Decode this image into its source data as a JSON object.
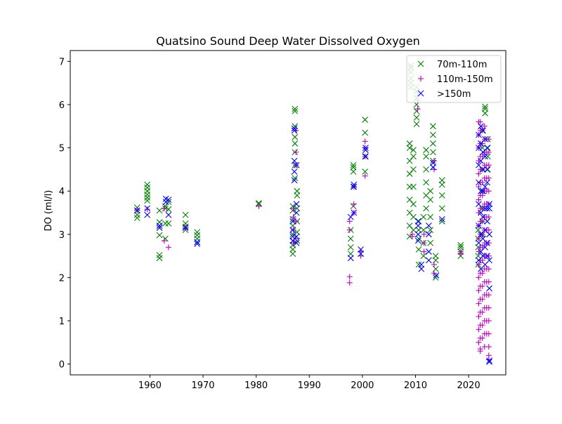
{
  "chart_data": {
    "type": "scatter",
    "title": "Quatsino Sound Deep Water Dissolved Oxygen",
    "xlabel": "",
    "ylabel": "DO (ml/l)",
    "xlim": [
      1945,
      2027
    ],
    "ylim": [
      -0.25,
      7.25
    ],
    "xticks": [
      1960,
      1970,
      1980,
      1990,
      2000,
      2010,
      2020
    ],
    "yticks": [
      0,
      1,
      2,
      3,
      4,
      5,
      6,
      7
    ],
    "grid": false,
    "legend_position": "top-right",
    "series": [
      {
        "name": "70m-110m",
        "marker": "x",
        "color": "#008000",
        "clusters": [
          [
            1957.6,
            [
              3.38,
              3.45,
              3.55,
              3.62
            ]
          ],
          [
            1959.5,
            [
              3.78,
              3.85,
              3.92,
              4.0,
              4.08,
              4.15
            ]
          ],
          [
            1961.8,
            [
              2.45,
              2.52,
              2.98,
              3.2,
              3.28,
              3.55
            ]
          ],
          [
            1962.9,
            [
              2.9,
              3.25,
              3.6,
              3.65
            ]
          ],
          [
            1963.5,
            [
              3.25,
              3.58,
              3.75
            ]
          ],
          [
            1966.7,
            [
              3.1,
              3.18,
              3.25,
              3.45
            ]
          ],
          [
            1968.9,
            [
              2.82,
              2.9,
              2.98,
              3.05
            ]
          ],
          [
            1980.5,
            [
              3.7,
              3.72
            ]
          ],
          [
            1986.9,
            [
              2.55,
              2.65,
              2.75,
              2.85,
              3.0,
              3.2,
              3.35,
              3.55,
              3.65
            ]
          ],
          [
            1987.3,
            [
              4.3,
              4.6,
              4.9,
              5.1,
              5.25,
              5.5,
              5.85,
              5.9
            ]
          ],
          [
            1987.7,
            [
              2.85,
              3.05,
              3.3,
              3.6,
              3.9,
              4.0
            ]
          ],
          [
            1997.8,
            [
              2.55,
              2.7,
              2.9,
              3.1
            ]
          ],
          [
            1998.3,
            [
              3.65,
              4.1,
              4.45,
              4.55,
              4.6
            ]
          ],
          [
            2000.5,
            [
              4.45,
              4.8,
              5.35,
              5.65
            ]
          ],
          [
            2008.9,
            [
              2.95,
              3.2,
              3.5,
              3.8,
              4.1,
              4.4,
              4.7,
              5.0,
              5.1
            ]
          ],
          [
            2009.1,
            [
              6.4,
              6.5,
              6.6,
              6.75,
              6.85,
              6.9
            ]
          ],
          [
            2009.6,
            [
              3.1,
              3.4,
              3.7,
              4.1,
              4.5,
              4.8,
              4.95
            ]
          ],
          [
            2010.2,
            [
              5.55,
              5.7,
              5.85,
              6.0,
              6.15,
              6.3,
              6.4
            ]
          ],
          [
            2010.6,
            [
              2.3,
              2.65,
              2.9,
              3.1,
              3.3
            ]
          ],
          [
            2011.5,
            [
              2.5,
              2.8,
              3.1,
              3.4
            ]
          ],
          [
            2012.0,
            [
              3.6,
              3.9,
              4.2,
              4.5,
              4.8,
              4.95
            ]
          ],
          [
            2012.8,
            [
              2.8,
              3.1,
              3.4,
              3.8,
              4.0
            ]
          ],
          [
            2013.3,
            [
              4.7,
              4.9,
              5.1,
              5.3,
              5.5
            ]
          ],
          [
            2013.8,
            [
              2.0,
              2.2,
              2.4,
              2.5
            ]
          ],
          [
            2015.0,
            [
              3.3,
              3.6,
              3.9,
              4.15,
              4.25
            ]
          ],
          [
            2018.5,
            [
              2.5,
              2.6,
              2.7,
              2.75
            ]
          ],
          [
            2021.8,
            [
              2.3,
              2.5,
              2.7,
              2.9,
              3.1
            ]
          ],
          [
            2022.6,
            [
              3.0,
              3.3,
              3.6,
              4.0,
              4.5,
              5.0,
              5.4
            ]
          ],
          [
            2023.1,
            [
              5.8,
              5.9,
              5.95
            ]
          ],
          [
            2023.6,
            [
              4.5,
              4.8,
              5.0,
              5.2
            ]
          ]
        ]
      },
      {
        "name": "110m-150m",
        "marker": "+",
        "color": "#bf00bf",
        "clusters": [
          [
            1957.6,
            [
              3.55
            ]
          ],
          [
            1959.5,
            [
              3.58
            ]
          ],
          [
            1962.7,
            [
              2.85,
              3.6
            ]
          ],
          [
            1963.5,
            [
              2.7
            ]
          ],
          [
            1966.7,
            [
              3.15
            ]
          ],
          [
            1980.5,
            [
              3.65
            ]
          ],
          [
            1987.0,
            [
              2.8,
              3.1,
              3.4,
              3.6
            ]
          ],
          [
            1987.5,
            [
              2.9,
              3.3,
              4.6,
              4.9,
              5.4
            ]
          ],
          [
            1997.6,
            [
              1.88,
              2.02,
              3.1,
              3.3
            ]
          ],
          [
            1998.4,
            [
              3.5,
              3.7,
              4.1
            ]
          ],
          [
            1999.7,
            [
              2.5,
              2.6
            ]
          ],
          [
            2000.5,
            [
              4.35,
              4.8,
              5.0,
              5.15
            ]
          ],
          [
            2009.4,
            [
              2.95,
              3.0
            ]
          ],
          [
            2010.4,
            [
              5.9,
              6.1,
              6.2
            ]
          ],
          [
            2011.6,
            [
              2.6,
              2.8,
              3.0
            ]
          ],
          [
            2013.5,
            [
              2.1,
              2.3,
              4.5,
              4.7
            ]
          ],
          [
            2018.5,
            [
              2.55,
              2.6
            ]
          ],
          [
            2021.9,
            [
              0.5,
              0.8,
              1.1,
              1.4,
              1.7,
              2.0,
              2.3,
              2.6,
              2.9,
              3.2,
              3.5,
              3.8,
              4.1,
              4.4,
              4.7,
              5.0,
              5.3,
              5.6
            ]
          ],
          [
            2022.2,
            [
              0.3,
              0.35,
              0.6,
              0.9,
              1.2,
              1.5,
              1.8,
              2.1,
              2.4,
              2.7,
              3.0,
              3.3,
              3.6,
              3.9,
              4.2,
              4.5,
              4.8,
              5.1,
              5.4,
              5.6
            ]
          ],
          [
            2022.6,
            [
              0.6,
              0.9,
              1.2,
              1.5,
              1.8,
              2.1,
              2.4,
              2.7,
              3.0,
              3.3,
              3.6,
              3.9,
              4.2,
              4.5,
              4.8,
              5.1,
              5.4
            ]
          ],
          [
            2023.0,
            [
              0.4,
              0.7,
              1.0,
              1.3,
              1.6,
              1.9,
              2.2,
              2.5,
              2.8,
              3.1,
              3.4,
              3.7,
              4.0,
              4.3,
              4.6,
              4.9,
              5.2,
              5.5
            ]
          ],
          [
            2023.4,
            [
              0.7,
              1.0,
              1.3,
              1.6,
              1.9,
              2.2,
              2.5,
              2.8,
              3.1,
              3.4,
              3.7,
              4.0,
              4.3,
              4.6,
              4.9
            ]
          ],
          [
            2023.8,
            [
              0.1,
              0.2,
              0.4,
              0.7,
              1.0,
              1.3,
              1.6,
              1.9,
              2.2,
              2.5,
              2.8,
              3.1,
              3.4,
              3.7,
              4.0,
              4.3,
              4.6,
              4.9,
              5.2
            ]
          ]
        ]
      },
      {
        "name": ">150m",
        "marker": "x",
        "color": "#0000ff",
        "clusters": [
          [
            1957.6,
            [
              3.55
            ]
          ],
          [
            1959.5,
            [
              3.45,
              3.6
            ]
          ],
          [
            1961.8,
            [
              3.15,
              3.2
            ]
          ],
          [
            1963.0,
            [
              3.75,
              3.82
            ]
          ],
          [
            1963.5,
            [
              3.45,
              3.8
            ]
          ],
          [
            1966.7,
            [
              3.15
            ]
          ],
          [
            1968.9,
            [
              2.78,
              2.82
            ]
          ],
          [
            1986.9,
            [
              2.85,
              2.95,
              3.1,
              3.3
            ]
          ],
          [
            1987.2,
            [
              4.25,
              4.45,
              4.7,
              5.4,
              5.45
            ]
          ],
          [
            1987.6,
            [
              2.8,
              2.95,
              3.5,
              3.7,
              4.6
            ]
          ],
          [
            1997.8,
            [
              2.45,
              3.4
            ]
          ],
          [
            1998.4,
            [
              3.5,
              4.1,
              4.15
            ]
          ],
          [
            1999.7,
            [
              2.55,
              2.65
            ]
          ],
          [
            2000.6,
            [
              4.8,
              4.95,
              5.0
            ]
          ],
          [
            2010.5,
            [
              2.85,
              3.0,
              3.2,
              3.3
            ]
          ],
          [
            2011.1,
            [
              2.2,
              2.3
            ]
          ],
          [
            2012.5,
            [
              2.4,
              2.6,
              3.0,
              3.2
            ]
          ],
          [
            2013.3,
            [
              4.55,
              4.65
            ]
          ],
          [
            2013.9,
            [
              2.05
            ]
          ],
          [
            2015.0,
            [
              3.35
            ]
          ],
          [
            2021.9,
            [
              2.4,
              2.8,
              3.2,
              3.7,
              4.2,
              4.6,
              5.0,
              5.3
            ]
          ],
          [
            2022.3,
            [
              2.2,
              2.6,
              3.0,
              3.5,
              4.0,
              4.7,
              5.1,
              5.5
            ]
          ],
          [
            2022.7,
            [
              2.5,
              2.9,
              3.4,
              4.0,
              4.5,
              4.9,
              5.4
            ]
          ],
          [
            2023.1,
            [
              2.3,
              2.7,
              3.1,
              3.6,
              4.1,
              4.8,
              5.2
            ]
          ],
          [
            2023.5,
            [
              2.5,
              2.8,
              3.3,
              3.6,
              4.2,
              4.5,
              5.0
            ]
          ],
          [
            2023.9,
            [
              0.05,
              0.08,
              1.75,
              2.4,
              3.0,
              3.6,
              3.7
            ]
          ]
        ]
      }
    ]
  },
  "colors": {
    "axes": "#000000",
    "background": "#ffffff",
    "legend_border": "#cccccc"
  }
}
